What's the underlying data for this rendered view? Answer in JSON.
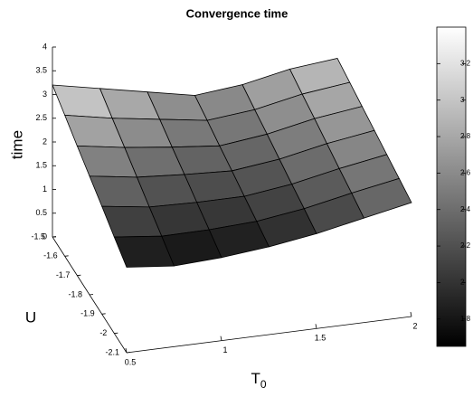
{
  "chart_data": {
    "type": "surface",
    "title": "Convergence time",
    "xlabel": "T",
    "xlabel_sub": "0",
    "ylabel": "U",
    "zlabel": "time",
    "x": [
      0.5,
      0.75,
      1,
      1.25,
      1.5,
      1.75,
      2
    ],
    "y": [
      -1.5,
      -1.6,
      -1.7,
      -1.8,
      -1.9,
      -2,
      -2.1
    ],
    "z": [
      [
        3.2,
        3.0,
        2.8,
        2.6,
        2.7,
        2.9,
        3.0
      ],
      [
        2.97,
        2.78,
        2.63,
        2.48,
        2.58,
        2.78,
        2.9
      ],
      [
        2.73,
        2.57,
        2.45,
        2.35,
        2.47,
        2.67,
        2.8
      ],
      [
        2.5,
        2.35,
        2.28,
        2.23,
        2.35,
        2.55,
        2.7
      ],
      [
        2.27,
        2.13,
        2.1,
        2.1,
        2.23,
        2.43,
        2.6
      ],
      [
        2.03,
        1.92,
        1.93,
        1.98,
        2.12,
        2.32,
        2.5
      ],
      [
        1.8,
        1.7,
        1.75,
        1.85,
        2.0,
        2.2,
        2.4
      ]
    ],
    "xlim": [
      0.5,
      2
    ],
    "xticks": [
      0.5,
      1,
      1.5,
      2
    ],
    "ylim": [
      -2.1,
      -1.5
    ],
    "yticks": [
      -1.5,
      -1.6,
      -1.7,
      -1.8,
      -1.9,
      -2,
      -2.1
    ],
    "zlim": [
      0,
      4
    ],
    "zticks": [
      0,
      0.5,
      1,
      1.5,
      2,
      2.5,
      3,
      3.5,
      4
    ],
    "colormap": "gray",
    "clim": [
      1.65,
      3.4
    ],
    "cticks": [
      1.8,
      2,
      2.2,
      2.4,
      2.6,
      2.8,
      3,
      3.2
    ]
  }
}
